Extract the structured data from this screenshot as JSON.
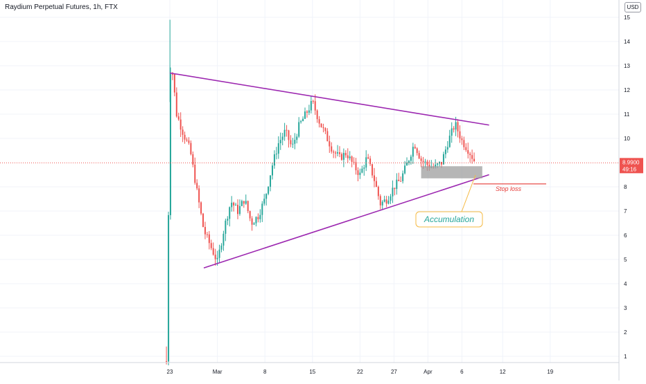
{
  "header": {
    "title": "Raydium Perpetual Futures, 1h, FTX",
    "currency": "USD"
  },
  "price_badge": {
    "price": "8.9900",
    "countdown": "49:16"
  },
  "annotations": {
    "accumulation": "Accumulation",
    "stop_loss": "Stop loss"
  },
  "colors": {
    "up": "#26a69a",
    "down": "#ef5350",
    "trendline": "#9c27b0",
    "stop_line": "#e53935",
    "accumulation_box": "#9e9e9e",
    "callout_border": "#f5b942",
    "callout_text": "#26a69a"
  },
  "chart_data": {
    "type": "candlestick",
    "title": "Raydium Perpetual Futures, 1h, FTX",
    "y_axis": {
      "ticks": [
        "1",
        "2",
        "3",
        "4",
        "5",
        "6",
        "7",
        "8",
        "10",
        "11",
        "12",
        "13",
        "14",
        "15"
      ],
      "range": [
        0.6,
        15.6
      ],
      "position": "right"
    },
    "x_axis": {
      "ticks": [
        "23",
        "Mar",
        "8",
        "15",
        "22",
        "27",
        "Apr",
        "6",
        "12",
        "19"
      ]
    },
    "last_price": 8.99,
    "price_path": [
      {
        "x": "Feb 22 12:00",
        "y": 0.8
      },
      {
        "x": "Feb 22 18:00",
        "y": 5.5
      },
      {
        "x": "Feb 23 00:00",
        "y": 12.6
      },
      {
        "x": "Feb 23 06:00",
        "y": 13.1
      },
      {
        "x": "Feb 24",
        "y": 11.0
      },
      {
        "x": "Feb 25",
        "y": 10.2
      },
      {
        "x": "Feb 26",
        "y": 9.5
      },
      {
        "x": "Feb 27",
        "y": 7.8
      },
      {
        "x": "Feb 28",
        "y": 6.2
      },
      {
        "x": "Mar 1",
        "y": 4.9
      },
      {
        "x": "Mar 2",
        "y": 6.3
      },
      {
        "x": "Mar 3",
        "y": 7.4
      },
      {
        "x": "Mar 4",
        "y": 7.0
      },
      {
        "x": "Mar 5",
        "y": 7.5
      },
      {
        "x": "Mar 6",
        "y": 6.5
      },
      {
        "x": "Mar 7",
        "y": 6.8
      },
      {
        "x": "Mar 8",
        "y": 7.5
      },
      {
        "x": "Mar 9",
        "y": 8.8
      },
      {
        "x": "Mar 10",
        "y": 9.8
      },
      {
        "x": "Mar 11",
        "y": 10.3
      },
      {
        "x": "Mar 12",
        "y": 9.6
      },
      {
        "x": "Mar 13",
        "y": 10.5
      },
      {
        "x": "Mar 14",
        "y": 11.0
      },
      {
        "x": "Mar 15",
        "y": 11.5
      },
      {
        "x": "Mar 16",
        "y": 10.7
      },
      {
        "x": "Mar 17",
        "y": 10.1
      },
      {
        "x": "Mar 18",
        "y": 9.5
      },
      {
        "x": "Mar 19",
        "y": 9.2
      },
      {
        "x": "Mar 20",
        "y": 9.4
      },
      {
        "x": "Mar 21",
        "y": 8.9
      },
      {
        "x": "Mar 22",
        "y": 8.5
      },
      {
        "x": "Mar 23",
        "y": 9.2
      },
      {
        "x": "Mar 24",
        "y": 8.4
      },
      {
        "x": "Mar 25",
        "y": 7.3
      },
      {
        "x": "Mar 26",
        "y": 7.5
      },
      {
        "x": "Mar 27",
        "y": 8.0
      },
      {
        "x": "Mar 28",
        "y": 8.3
      },
      {
        "x": "Mar 29",
        "y": 9.0
      },
      {
        "x": "Mar 30",
        "y": 9.8
      },
      {
        "x": "Mar 31",
        "y": 9.1
      },
      {
        "x": "Apr 1",
        "y": 8.9
      },
      {
        "x": "Apr 2",
        "y": 8.8
      },
      {
        "x": "Apr 3",
        "y": 9.0
      },
      {
        "x": "Apr 4",
        "y": 9.9
      },
      {
        "x": "Apr 5",
        "y": 10.6
      },
      {
        "x": "Apr 6",
        "y": 9.9
      },
      {
        "x": "Apr 7",
        "y": 9.5
      },
      {
        "x": "Apr 8",
        "y": 8.99
      }
    ],
    "drawings": {
      "upper_trendline": [
        {
          "x": "Feb 23",
          "y": 12.7
        },
        {
          "x": "Apr 10",
          "y": 10.55
        }
      ],
      "lower_trendline": [
        {
          "x": "Feb 28",
          "y": 4.65
        },
        {
          "x": "Apr 10",
          "y": 8.5
        }
      ],
      "accumulation_zone": {
        "from": "Mar 31",
        "to": "Apr 9",
        "y_low": 8.35,
        "y_high": 8.85
      },
      "stop_loss_level": 8.12
    }
  }
}
